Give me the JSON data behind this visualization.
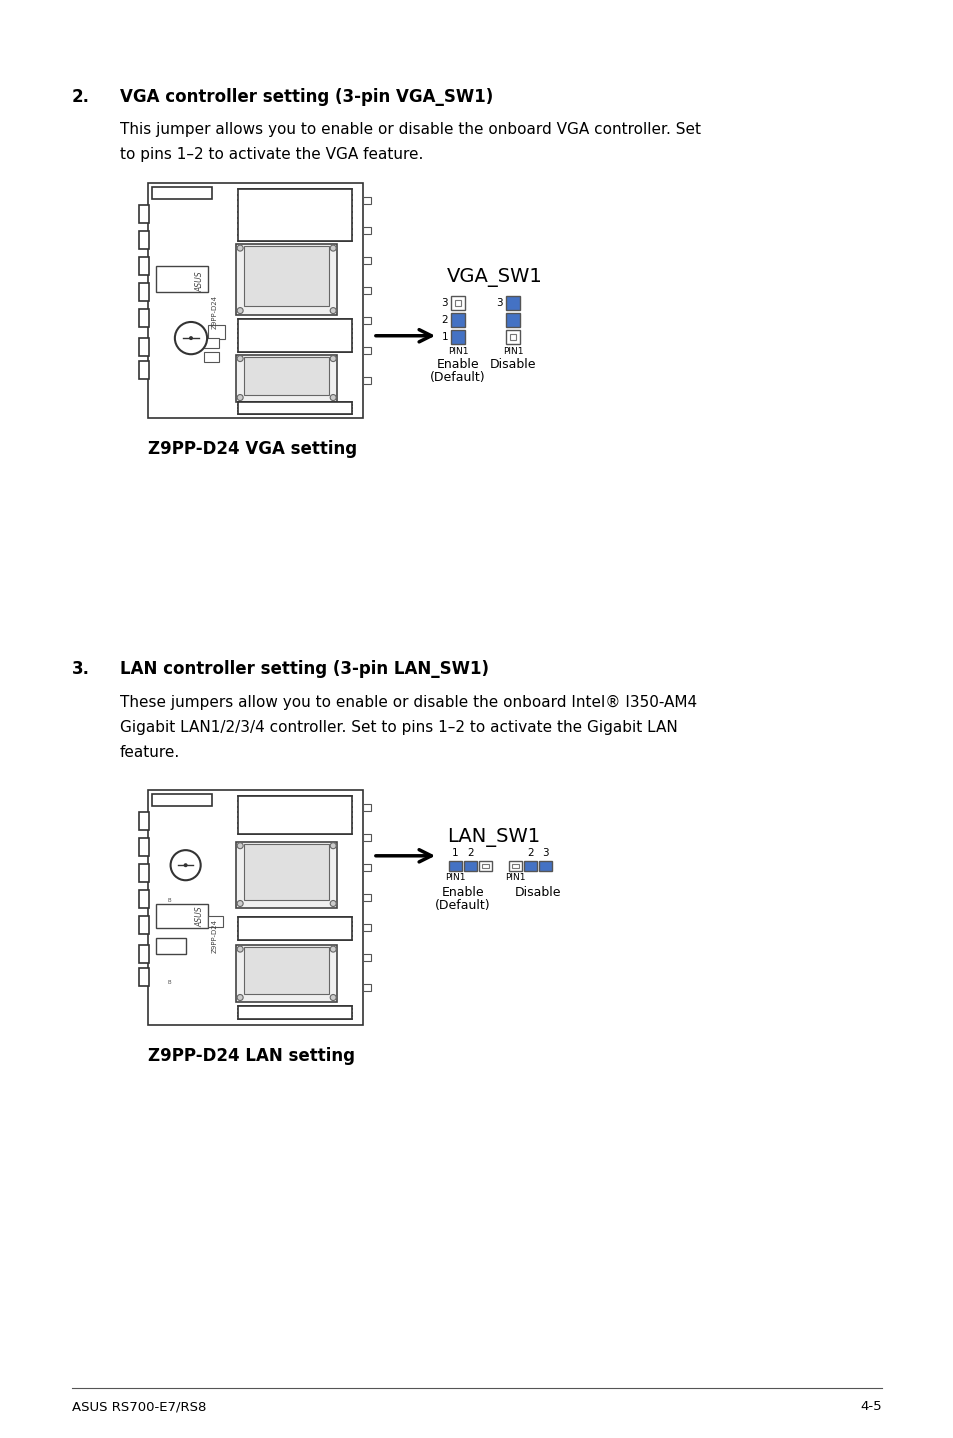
{
  "bg_color": "#ffffff",
  "section2_title": "2.    VGA controller setting (3-pin VGA_SW1)",
  "section2_body1": "This jumper allows you to enable or disable the onboard VGA controller. Set",
  "section2_body2": "to pins 1–2 to activate the VGA feature.",
  "section2_caption": "Z9PP-D24 VGA setting",
  "vga_sw1_label": "VGA_SW1",
  "vga_enable_label": "Enable",
  "vga_enable_label2": "(Default)",
  "vga_disable_label": "Disable",
  "vga_pin1_label": "PIN1",
  "section3_title": "3.    LAN controller setting (3-pin LAN_SW1)",
  "section3_body1": "These jumpers allow you to enable or disable the onboard Intel® I350-AM4",
  "section3_body2": "Gigabit LAN1/2/3/4 controller. Set to pins 1–2 to activate the Gigabit LAN",
  "section3_body3": "feature.",
  "section3_caption": "Z9PP-D24 LAN setting",
  "lan_sw1_label": "LAN_SW1",
  "lan_enable_label": "Enable",
  "lan_enable_label2": "(Default)",
  "lan_disable_label": "Disable",
  "lan_pin1_label": "PIN1",
  "footer_left": "ASUS RS700-E7/RS8",
  "footer_right": "4-5",
  "blue_color": "#4472c4",
  "black_color": "#000000",
  "board_edge": "#333333",
  "pin_outline": "#555555"
}
